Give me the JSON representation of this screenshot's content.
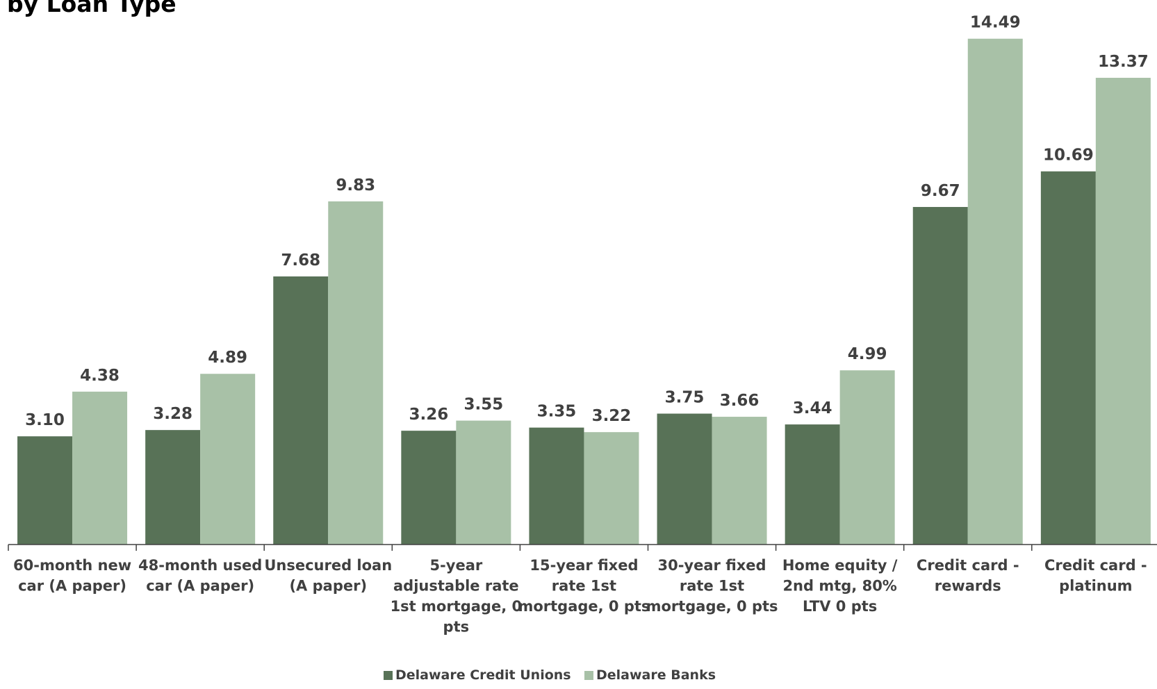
{
  "chart_data": {
    "type": "bar",
    "title": "by Loan Type",
    "xlabel": "",
    "ylabel": "",
    "ylim": [
      0,
      15.4
    ],
    "grid": false,
    "legend_position": "bottom",
    "categories": [
      [
        "60-month new",
        "car (A paper)"
      ],
      [
        "48-month used",
        "car (A paper)"
      ],
      [
        "Unsecured loan",
        "(A paper)"
      ],
      [
        "5-year",
        "adjustable rate",
        "1st mortgage, 0",
        "pts"
      ],
      [
        "15-year fixed",
        "rate 1st",
        "mortgage, 0 pts"
      ],
      [
        "30-year fixed",
        "rate 1st",
        "mortgage, 0 pts"
      ],
      [
        "Home equity /",
        "2nd mtg, 80%",
        "LTV 0 pts"
      ],
      [
        "Credit card -",
        "rewards"
      ],
      [
        "Credit card -",
        "platinum"
      ]
    ],
    "series": [
      {
        "name": "Delaware Credit Unions",
        "color": "#587257",
        "values": [
          3.1,
          3.28,
          7.68,
          3.26,
          3.35,
          3.75,
          3.44,
          9.67,
          10.69
        ],
        "labels": [
          "3.10",
          "3.28",
          "7.68",
          "3.26",
          "3.35",
          "3.75",
          "3.44",
          "9.67",
          "10.69"
        ]
      },
      {
        "name": "Delaware Banks",
        "color": "#a8c1a7",
        "values": [
          4.38,
          4.89,
          9.83,
          3.55,
          3.22,
          3.66,
          4.99,
          14.49,
          13.37
        ],
        "labels": [
          "4.38",
          "4.89",
          "9.83",
          "3.55",
          "3.22",
          "3.66",
          "4.99",
          "14.49",
          "13.37"
        ]
      }
    ]
  }
}
